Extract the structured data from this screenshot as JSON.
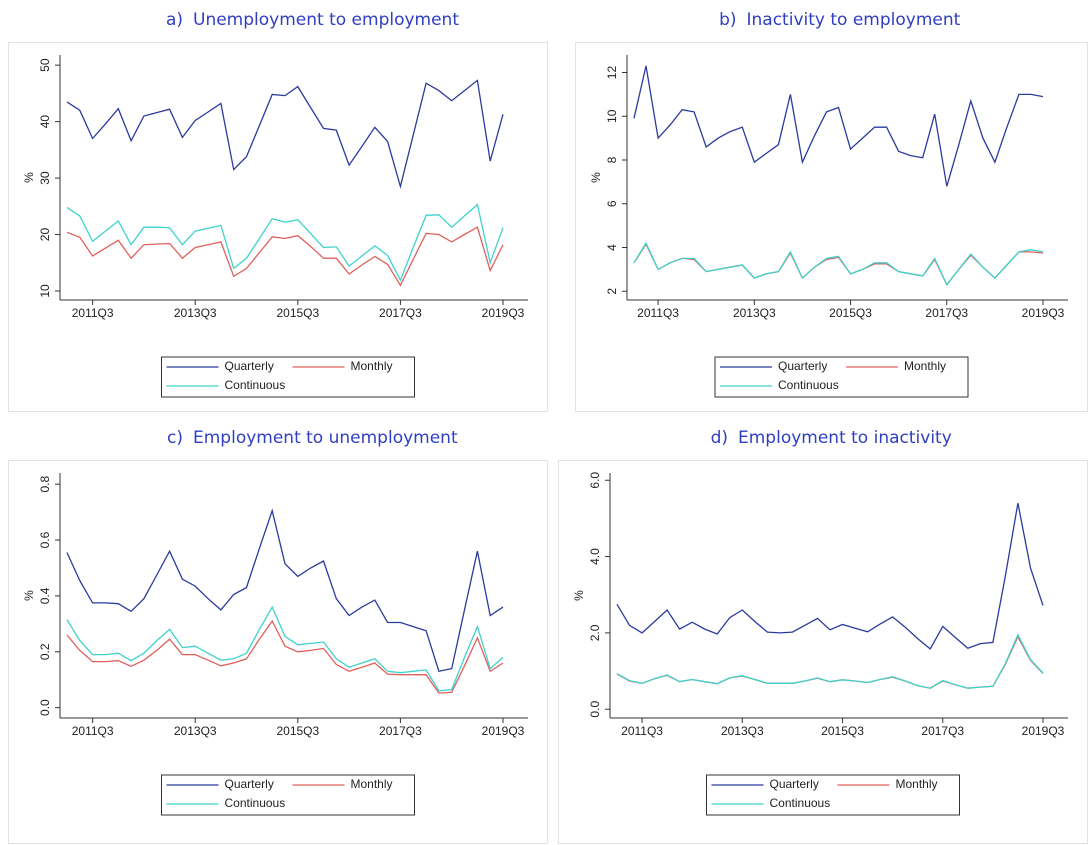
{
  "chart_data": [
    {
      "type": "line",
      "label": "a)",
      "title": "Unemployment to employment",
      "y_label": "%",
      "categories": [
        null,
        null,
        "2011Q3",
        null,
        null,
        null,
        null,
        null,
        null,
        null,
        "2013Q3",
        null,
        null,
        null,
        null,
        null,
        null,
        null,
        "2015Q3",
        null,
        null,
        null,
        null,
        null,
        null,
        null,
        "2017Q3",
        null,
        null,
        null,
        null,
        null,
        null,
        null,
        "2019Q3"
      ],
      "ylim": [
        8.4,
        51.8
      ],
      "yticks": [
        10,
        20,
        30,
        40,
        50
      ],
      "series": [
        {
          "name": "Quarterly",
          "color": "#2b3a9e",
          "values": [
            43.5,
            42,
            37,
            39.6,
            42.3,
            36.6,
            41,
            41.6,
            42.2,
            37.2,
            40.2,
            41.7,
            43.2,
            31.5,
            33.8,
            39.3,
            44.8,
            44.6,
            46.2,
            42.5,
            38.8,
            38.5,
            32.3,
            35.6,
            39,
            36.5,
            28.5,
            37.6,
            46.8,
            45.5,
            43.7,
            45.5,
            47.3,
            33,
            41.3
          ]
        },
        {
          "name": "Monthly",
          "color": "#e0605c",
          "values": [
            20.4,
            19.5,
            16.2,
            17.6,
            19,
            15.8,
            18.2,
            18.3,
            18.4,
            15.8,
            17.7,
            18.2,
            18.7,
            12.6,
            14,
            16.8,
            19.6,
            19.3,
            19.8,
            17.9,
            15.8,
            15.8,
            13,
            14.6,
            16.1,
            14.7,
            11,
            15.6,
            20.2,
            20,
            18.7,
            20,
            21.3,
            13.6,
            18.2
          ]
        },
        {
          "name": "Continuous",
          "color": "#3ed3cc",
          "values": [
            24.8,
            23.3,
            18.8,
            20.6,
            22.4,
            18.2,
            21.3,
            21.3,
            21.2,
            18.2,
            20.6,
            21.1,
            21.6,
            14,
            15.8,
            19.3,
            22.8,
            22.2,
            22.6,
            20.2,
            17.7,
            17.8,
            14.4,
            16.2,
            18,
            16.3,
            11.9,
            17.7,
            23.4,
            23.5,
            21.3,
            23.3,
            25.3,
            15,
            21.2
          ]
        }
      ]
    },
    {
      "type": "line",
      "label": "b)",
      "title": "Inactivity to employment",
      "y_label": "%",
      "categories": [
        null,
        null,
        "2011Q3",
        null,
        null,
        null,
        null,
        null,
        null,
        null,
        "2013Q3",
        null,
        null,
        null,
        null,
        null,
        null,
        null,
        "2015Q3",
        null,
        null,
        null,
        null,
        null,
        null,
        null,
        "2017Q3",
        null,
        null,
        null,
        null,
        null,
        null,
        null,
        "2019Q3"
      ],
      "ylim": [
        1.6,
        12.8
      ],
      "yticks": [
        2,
        4,
        6,
        8,
        10,
        12
      ],
      "series": [
        {
          "name": "Quarterly",
          "color": "#2b3a9e",
          "values": [
            9.9,
            12.3,
            9,
            9.6,
            10.3,
            10.2,
            8.6,
            9,
            9.3,
            9.5,
            7.9,
            8.3,
            8.7,
            11,
            7.9,
            9.1,
            10.2,
            10.4,
            8.5,
            9,
            9.5,
            9.5,
            8.4,
            8.2,
            8.1,
            10.1,
            6.8,
            8.7,
            10.7,
            9,
            7.9,
            9.5,
            11,
            11,
            10.9
          ]
        },
        {
          "name": "Monthly",
          "color": "#e0605c",
          "values": [
            3.3,
            4.15,
            3,
            3.3,
            3.5,
            3.45,
            2.9,
            3,
            3.1,
            3.2,
            2.6,
            2.8,
            2.9,
            3.75,
            2.6,
            3.1,
            3.45,
            3.55,
            2.8,
            3,
            3.25,
            3.25,
            2.9,
            2.8,
            2.7,
            3.45,
            2.3,
            3,
            3.65,
            3.1,
            2.6,
            3.2,
            3.8,
            3.8,
            3.75
          ]
        },
        {
          "name": "Continuous",
          "color": "#3ed3cc",
          "values": [
            3.3,
            4.2,
            3,
            3.3,
            3.5,
            3.5,
            2.9,
            3,
            3.1,
            3.2,
            2.6,
            2.8,
            2.9,
            3.8,
            2.6,
            3.1,
            3.5,
            3.6,
            2.8,
            3,
            3.3,
            3.3,
            2.9,
            2.8,
            2.7,
            3.5,
            2.3,
            3,
            3.7,
            3.1,
            2.6,
            3.2,
            3.8,
            3.9,
            3.8
          ]
        }
      ]
    },
    {
      "type": "line",
      "label": "c)",
      "title": "Employment to unemployment",
      "y_label": "%",
      "categories": [
        null,
        null,
        "2011Q3",
        null,
        null,
        null,
        null,
        null,
        null,
        null,
        "2013Q3",
        null,
        null,
        null,
        null,
        null,
        null,
        null,
        "2015Q3",
        null,
        null,
        null,
        null,
        null,
        null,
        null,
        "2017Q3",
        null,
        null,
        null,
        null,
        null,
        null,
        null,
        "2019Q3"
      ],
      "ylim": [
        -0.037,
        0.84
      ],
      "yticks": [
        {
          "value": 0,
          "label": "0.0"
        },
        0.2,
        0.4,
        0.6,
        0.8
      ],
      "series": [
        {
          "name": "Quarterly",
          "color": "#2b3a9e",
          "values": [
            0.555,
            0.455,
            0.375,
            0.375,
            0.372,
            0.345,
            0.39,
            0.475,
            0.56,
            0.46,
            0.435,
            0.39,
            0.35,
            0.405,
            0.43,
            0.57,
            0.705,
            0.515,
            0.47,
            0.5,
            0.525,
            0.39,
            0.33,
            0.36,
            0.385,
            0.305,
            0.305,
            0.29,
            0.275,
            0.13,
            0.14,
            0.35,
            0.56,
            0.33,
            0.36
          ]
        },
        {
          "name": "Monthly",
          "color": "#e0605c",
          "values": [
            0.26,
            0.205,
            0.165,
            0.165,
            0.168,
            0.148,
            0.17,
            0.205,
            0.245,
            0.19,
            0.19,
            0.17,
            0.15,
            0.16,
            0.175,
            0.245,
            0.31,
            0.22,
            0.2,
            0.205,
            0.212,
            0.155,
            0.13,
            0.145,
            0.16,
            0.12,
            0.118,
            0.118,
            0.118,
            0.052,
            0.055,
            0.15,
            0.25,
            0.13,
            0.16
          ]
        },
        {
          "name": "Continuous",
          "color": "#3ed3cc",
          "values": [
            0.315,
            0.24,
            0.19,
            0.19,
            0.195,
            0.168,
            0.195,
            0.24,
            0.28,
            0.215,
            0.22,
            0.195,
            0.17,
            0.175,
            0.195,
            0.28,
            0.36,
            0.255,
            0.225,
            0.23,
            0.235,
            0.175,
            0.145,
            0.16,
            0.175,
            0.13,
            0.125,
            0.13,
            0.135,
            0.06,
            0.065,
            0.18,
            0.29,
            0.14,
            0.18
          ]
        }
      ]
    },
    {
      "type": "line",
      "label": "d)",
      "title": "Employment to inactivity",
      "y_label": "%",
      "categories": [
        null,
        null,
        "2011Q3",
        null,
        null,
        null,
        null,
        null,
        null,
        null,
        "2013Q3",
        null,
        null,
        null,
        null,
        null,
        null,
        null,
        "2015Q3",
        null,
        null,
        null,
        null,
        null,
        null,
        null,
        "2017Q3",
        null,
        null,
        null,
        null,
        null,
        null,
        null,
        "2019Q3"
      ],
      "ylim": [
        -0.23,
        6.19
      ],
      "yticks": [
        {
          "value": 0,
          "label": "0.0"
        },
        {
          "value": 2,
          "label": "2.0"
        },
        {
          "value": 4,
          "label": "4.0"
        },
        {
          "value": 6,
          "label": "6.0"
        }
      ],
      "series": [
        {
          "name": "Quarterly",
          "color": "#2b3a9e",
          "values": [
            2.75,
            2.2,
            2.0,
            2.3,
            2.6,
            2.1,
            2.28,
            2.1,
            1.97,
            2.4,
            2.6,
            2.3,
            2.02,
            2.0,
            2.02,
            2.2,
            2.38,
            2.08,
            2.22,
            2.12,
            2.03,
            2.23,
            2.42,
            2.15,
            1.85,
            1.58,
            2.17,
            1.88,
            1.6,
            1.72,
            1.75,
            3.5,
            5.4,
            3.7,
            2.72
          ]
        },
        {
          "name": "Monthly",
          "color": "#e0605c",
          "values": [
            0.92,
            0.74,
            0.68,
            0.8,
            0.89,
            0.72,
            0.78,
            0.72,
            0.67,
            0.82,
            0.87,
            0.78,
            0.68,
            0.68,
            0.68,
            0.74,
            0.81,
            0.72,
            0.77,
            0.74,
            0.7,
            0.78,
            0.84,
            0.74,
            0.62,
            0.55,
            0.74,
            0.64,
            0.55,
            0.58,
            0.6,
            1.18,
            1.9,
            1.28,
            0.94
          ]
        },
        {
          "name": "Continuous",
          "color": "#3ed3cc",
          "values": [
            0.93,
            0.75,
            0.68,
            0.8,
            0.9,
            0.72,
            0.78,
            0.72,
            0.67,
            0.82,
            0.88,
            0.78,
            0.68,
            0.68,
            0.68,
            0.74,
            0.82,
            0.72,
            0.77,
            0.74,
            0.7,
            0.78,
            0.85,
            0.74,
            0.62,
            0.55,
            0.75,
            0.64,
            0.55,
            0.58,
            0.6,
            1.2,
            1.95,
            1.3,
            0.95
          ]
        }
      ]
    }
  ]
}
